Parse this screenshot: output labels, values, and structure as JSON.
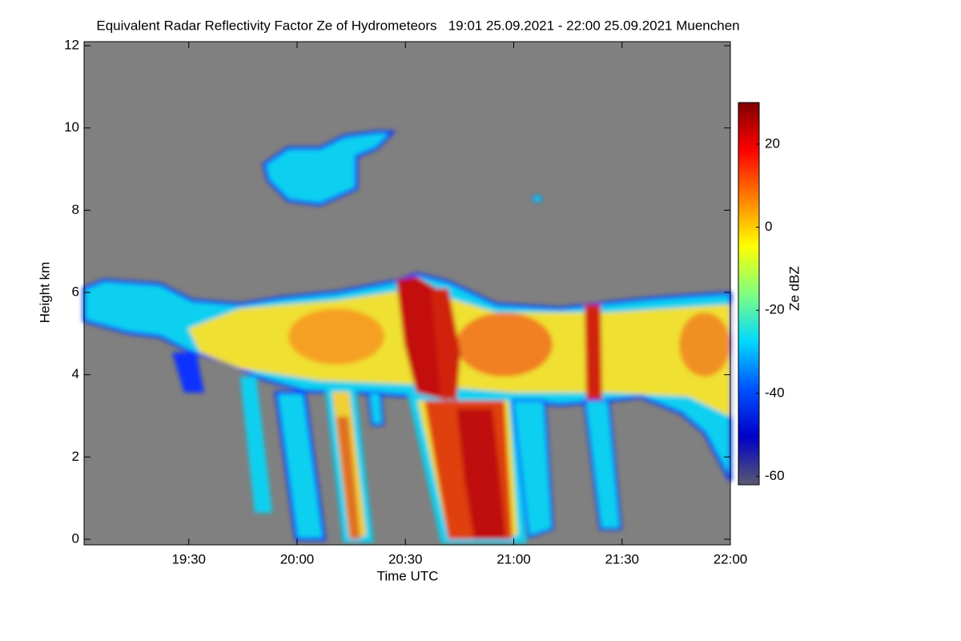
{
  "chart_data": {
    "type": "heatmap",
    "title": "Equivalent Radar Reflectivity Factor Ze of Hydrometeors   19:01 25.09.2021 - 22:00 25.09.2021 Muenchen",
    "x_label": "Time UTC",
    "y_label": "Height km",
    "xlim": [
      1,
      180
    ],
    "xticks": [
      {
        "value": 30,
        "label": "19:30"
      },
      {
        "value": 60,
        "label": "20:00"
      },
      {
        "value": 90,
        "label": "20:30"
      },
      {
        "value": 120,
        "label": "21:00"
      },
      {
        "value": 150,
        "label": "21:30"
      },
      {
        "value": 180,
        "label": "22:00"
      }
    ],
    "ylim": [
      0,
      12
    ],
    "yticks": [
      0,
      2,
      4,
      6,
      8,
      10,
      12
    ],
    "colorbar": {
      "label": "Ze dBZ",
      "lim": [
        -62,
        30
      ],
      "ticks": [
        20,
        0,
        -20,
        -40,
        -60
      ],
      "colors": [
        "#5a5a6e",
        "#0000c8",
        "#0050ff",
        "#00d8ff",
        "#80ff80",
        "#ffff00",
        "#ff8000",
        "#ff0000",
        "#800000"
      ]
    }
  }
}
